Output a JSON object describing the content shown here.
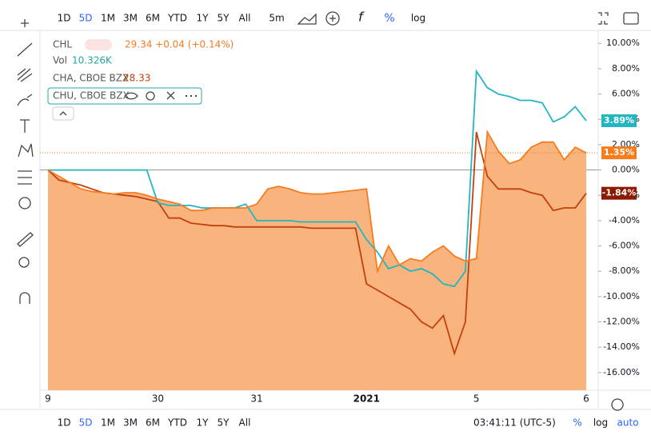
{
  "toolbar_top": {
    "ranges": [
      "1D",
      "5D",
      "1M",
      "3M",
      "6M",
      "YTD",
      "1Y",
      "5Y",
      "All"
    ],
    "interval": "5m",
    "percent": "%",
    "log": "log"
  },
  "toolbar_bottom": {
    "ranges": [
      "1D",
      "5D",
      "1M",
      "3M",
      "6M",
      "YTD",
      "1Y",
      "5Y",
      "All"
    ],
    "time": "03:41:11 (UTC-5)",
    "percent": "%",
    "log": "log",
    "auto": "auto"
  },
  "legend_info": {
    "main_quote": "29.34 +0.04 (+0.14%)",
    "vol_label": "Vol",
    "vol_value": "10.326K",
    "cha_price": "28.33"
  },
  "chart_data": {
    "type": "line",
    "area_series": 0,
    "categories": [
      "9",
      null,
      null,
      null,
      null,
      null,
      null,
      null,
      null,
      null,
      "30",
      null,
      null,
      null,
      null,
      null,
      null,
      null,
      null,
      "31",
      null,
      null,
      null,
      null,
      null,
      null,
      null,
      null,
      null,
      "2021",
      null,
      null,
      null,
      null,
      null,
      null,
      null,
      null,
      null,
      "5",
      null,
      null,
      null,
      null,
      null,
      null,
      null,
      null,
      null,
      "6"
    ],
    "ylim": [
      -17.4,
      10.9
    ],
    "yticks": [
      {
        "value": 10,
        "label": "10.00%"
      },
      {
        "value": 8,
        "label": "8.00%"
      },
      {
        "value": 6,
        "label": "6.00%"
      },
      {
        "value": 4,
        "label": "4.00%"
      },
      {
        "value": 2,
        "label": "2.00%"
      },
      {
        "value": 0,
        "label": "0.00%"
      },
      {
        "value": -2,
        "label": "-2.00%"
      },
      {
        "value": -4,
        "label": "-4.00%"
      },
      {
        "value": -6,
        "label": "-6.00%"
      },
      {
        "value": -8,
        "label": "-8.00%"
      },
      {
        "value": -10,
        "label": "-10.00%"
      },
      {
        "value": -12,
        "label": "-12.00%"
      },
      {
        "value": -14,
        "label": "-14.00%"
      },
      {
        "value": -16,
        "label": "-16.00%"
      }
    ],
    "series": [
      {
        "name": "CHL",
        "color": "#f57c1f",
        "fill": "#f9b47e",
        "values": [
          0,
          -0.5,
          -1,
          -1.5,
          -1.7,
          -1.8,
          -1.9,
          -1.8,
          -1.8,
          -2,
          -2.3,
          -2.5,
          -2.7,
          -3.2,
          -3.2,
          -3,
          -3,
          -3,
          -3,
          -2.7,
          -1.5,
          -1.3,
          -1.5,
          -1.8,
          -1.9,
          -1.9,
          -1.8,
          -1.7,
          -1.6,
          -1.5,
          -8,
          -6,
          -7.5,
          -7,
          -7.2,
          -6.5,
          -6,
          -6.8,
          -7.2,
          -7,
          3,
          1.5,
          0.5,
          0.8,
          1.8,
          2.2,
          2.2,
          0.8,
          1.8,
          1.35
        ],
        "value_labels": [
          null,
          null,
          null,
          null,
          null,
          null,
          null,
          null,
          null,
          null,
          null,
          null,
          null,
          null,
          null,
          null,
          null,
          null,
          null,
          null,
          null,
          null,
          null,
          null,
          null,
          null,
          null,
          null,
          null,
          null,
          null,
          null,
          null,
          null,
          null,
          null,
          null,
          null,
          null,
          null,
          null,
          null,
          null,
          null,
          null,
          null,
          null,
          null,
          null,
          "1.35%"
        ]
      },
      {
        "name": "CHA, CBOE BZX",
        "color": "#c2400f",
        "values": [
          0,
          -0.8,
          -1,
          -1.2,
          -1.5,
          -1.8,
          -1.9,
          -2,
          -2.1,
          -2.3,
          -2.5,
          -3.8,
          -3.8,
          -4.2,
          -4.3,
          -4.4,
          -4.4,
          -4.5,
          -4.5,
          -4.5,
          -4.5,
          -4.5,
          -4.5,
          -4.5,
          -4.6,
          -4.6,
          -4.6,
          -4.6,
          -4.6,
          -9,
          -9.5,
          -10,
          -10.5,
          -11,
          -12,
          -12.5,
          -11.5,
          -14.5,
          -12,
          3,
          -0.5,
          -1.5,
          -1.5,
          -1.5,
          -1.8,
          -2,
          -3.2,
          -3,
          -3,
          -1.84
        ],
        "value_labels": [
          null,
          null,
          null,
          null,
          null,
          null,
          null,
          null,
          null,
          null,
          null,
          null,
          null,
          null,
          null,
          null,
          null,
          null,
          null,
          null,
          null,
          null,
          null,
          null,
          null,
          null,
          null,
          null,
          null,
          null,
          null,
          null,
          null,
          null,
          null,
          null,
          null,
          null,
          null,
          null,
          null,
          null,
          null,
          null,
          null,
          null,
          null,
          null,
          null,
          "-1.84%"
        ],
        "label_color": "#8b1a00"
      },
      {
        "name": "CHU, CBOE BZX",
        "color": "#22b5c2",
        "values": [
          0,
          0,
          0,
          0,
          0,
          0,
          0,
          0,
          0,
          0,
          -2.6,
          -2.8,
          -2.8,
          -2.8,
          -3,
          -3,
          -3,
          -3,
          -2.7,
          -4,
          -4,
          -4,
          -4,
          -4.1,
          -4.1,
          -4.1,
          -4.1,
          -4.1,
          -4.1,
          -5.5,
          -6.5,
          -7.8,
          -7.5,
          -8,
          -7.8,
          -8.2,
          -9,
          -9.2,
          -8,
          7.8,
          6.5,
          6,
          5.8,
          5.5,
          5.5,
          5.3,
          3.8,
          4.2,
          5,
          3.89
        ],
        "value_labels": [
          null,
          null,
          null,
          null,
          null,
          null,
          null,
          null,
          null,
          null,
          null,
          null,
          null,
          null,
          null,
          null,
          null,
          null,
          null,
          null,
          null,
          null,
          null,
          null,
          null,
          null,
          null,
          null,
          null,
          null,
          null,
          null,
          null,
          null,
          null,
          null,
          null,
          null,
          null,
          null,
          null,
          null,
          null,
          null,
          null,
          null,
          null,
          null,
          null,
          "3.89%"
        ]
      }
    ]
  }
}
